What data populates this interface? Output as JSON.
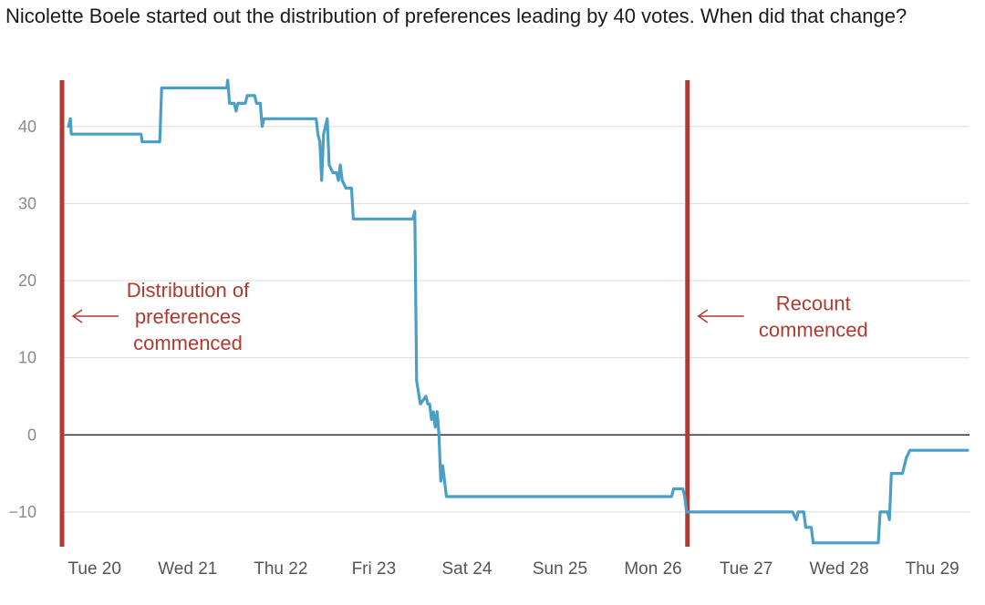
{
  "chart_data": {
    "type": "line",
    "title": "Nicolette Boele started out the distribution of preferences leading by 40 votes. When did that change?",
    "xlabel": "",
    "ylabel": "",
    "ylim": [
      -14.5,
      46
    ],
    "yticks": [
      "40",
      "30",
      "20",
      "10",
      "0",
      "−10"
    ],
    "ytick_values": [
      40,
      30,
      20,
      10,
      0,
      -10
    ],
    "x_tick_labels": [
      "Tue 20",
      "Wed 21",
      "Thu 22",
      "Fri 23",
      "Sat 24",
      "Sun 25",
      "Mon 26",
      "Tue 27",
      "Wed 28",
      "Thu 29"
    ],
    "x_unit": "day index (0 = Tue 20)",
    "xlim": [
      -0.35,
      9.4
    ],
    "grid": true,
    "line_color": "#4a9fc7",
    "annotation_color": "#b03a30",
    "events": [
      {
        "x": -0.35,
        "lines": [
          "Distribution of",
          "preferences",
          "commenced"
        ]
      },
      {
        "x": 6.37,
        "lines": [
          "Recount",
          "commenced"
        ]
      }
    ],
    "series": [
      {
        "points": [
          [
            -0.28,
            40
          ],
          [
            -0.26,
            41
          ],
          [
            -0.25,
            39
          ],
          [
            0.5,
            39
          ],
          [
            0.51,
            38
          ],
          [
            0.7,
            38
          ],
          [
            0.72,
            45
          ],
          [
            1.42,
            45
          ],
          [
            1.43,
            46
          ],
          [
            1.45,
            43
          ],
          [
            1.5,
            43
          ],
          [
            1.52,
            42
          ],
          [
            1.54,
            43
          ],
          [
            1.62,
            43
          ],
          [
            1.64,
            44
          ],
          [
            1.72,
            44
          ],
          [
            1.74,
            43
          ],
          [
            1.78,
            43
          ],
          [
            1.8,
            40
          ],
          [
            1.82,
            41
          ],
          [
            2.38,
            41
          ],
          [
            2.4,
            39
          ],
          [
            2.42,
            38
          ],
          [
            2.44,
            33
          ],
          [
            2.46,
            39
          ],
          [
            2.5,
            41
          ],
          [
            2.52,
            35
          ],
          [
            2.56,
            34
          ],
          [
            2.6,
            34
          ],
          [
            2.62,
            33
          ],
          [
            2.64,
            35
          ],
          [
            2.66,
            33
          ],
          [
            2.7,
            32
          ],
          [
            2.76,
            32
          ],
          [
            2.78,
            28
          ],
          [
            3.42,
            28
          ],
          [
            3.44,
            29
          ],
          [
            3.46,
            7
          ],
          [
            3.5,
            4
          ],
          [
            3.56,
            5
          ],
          [
            3.58,
            4
          ],
          [
            3.6,
            4
          ],
          [
            3.62,
            2
          ],
          [
            3.64,
            3
          ],
          [
            3.66,
            1
          ],
          [
            3.68,
            3
          ],
          [
            3.7,
            0
          ],
          [
            3.72,
            -6
          ],
          [
            3.74,
            -4
          ],
          [
            3.78,
            -8
          ],
          [
            6.2,
            -8
          ],
          [
            6.22,
            -7
          ],
          [
            6.32,
            -7
          ],
          [
            6.34,
            -8
          ],
          [
            6.36,
            -10
          ],
          [
            7.5,
            -10
          ],
          [
            7.54,
            -11
          ],
          [
            7.56,
            -10
          ],
          [
            7.62,
            -10
          ],
          [
            7.64,
            -12
          ],
          [
            7.7,
            -12
          ],
          [
            7.72,
            -14
          ],
          [
            8.42,
            -14
          ],
          [
            8.44,
            -10
          ],
          [
            8.52,
            -10
          ],
          [
            8.54,
            -11
          ],
          [
            8.56,
            -5
          ],
          [
            8.68,
            -5
          ],
          [
            8.7,
            -4
          ],
          [
            8.72,
            -3
          ],
          [
            8.76,
            -2
          ],
          [
            9.38,
            -2
          ]
        ]
      }
    ]
  }
}
